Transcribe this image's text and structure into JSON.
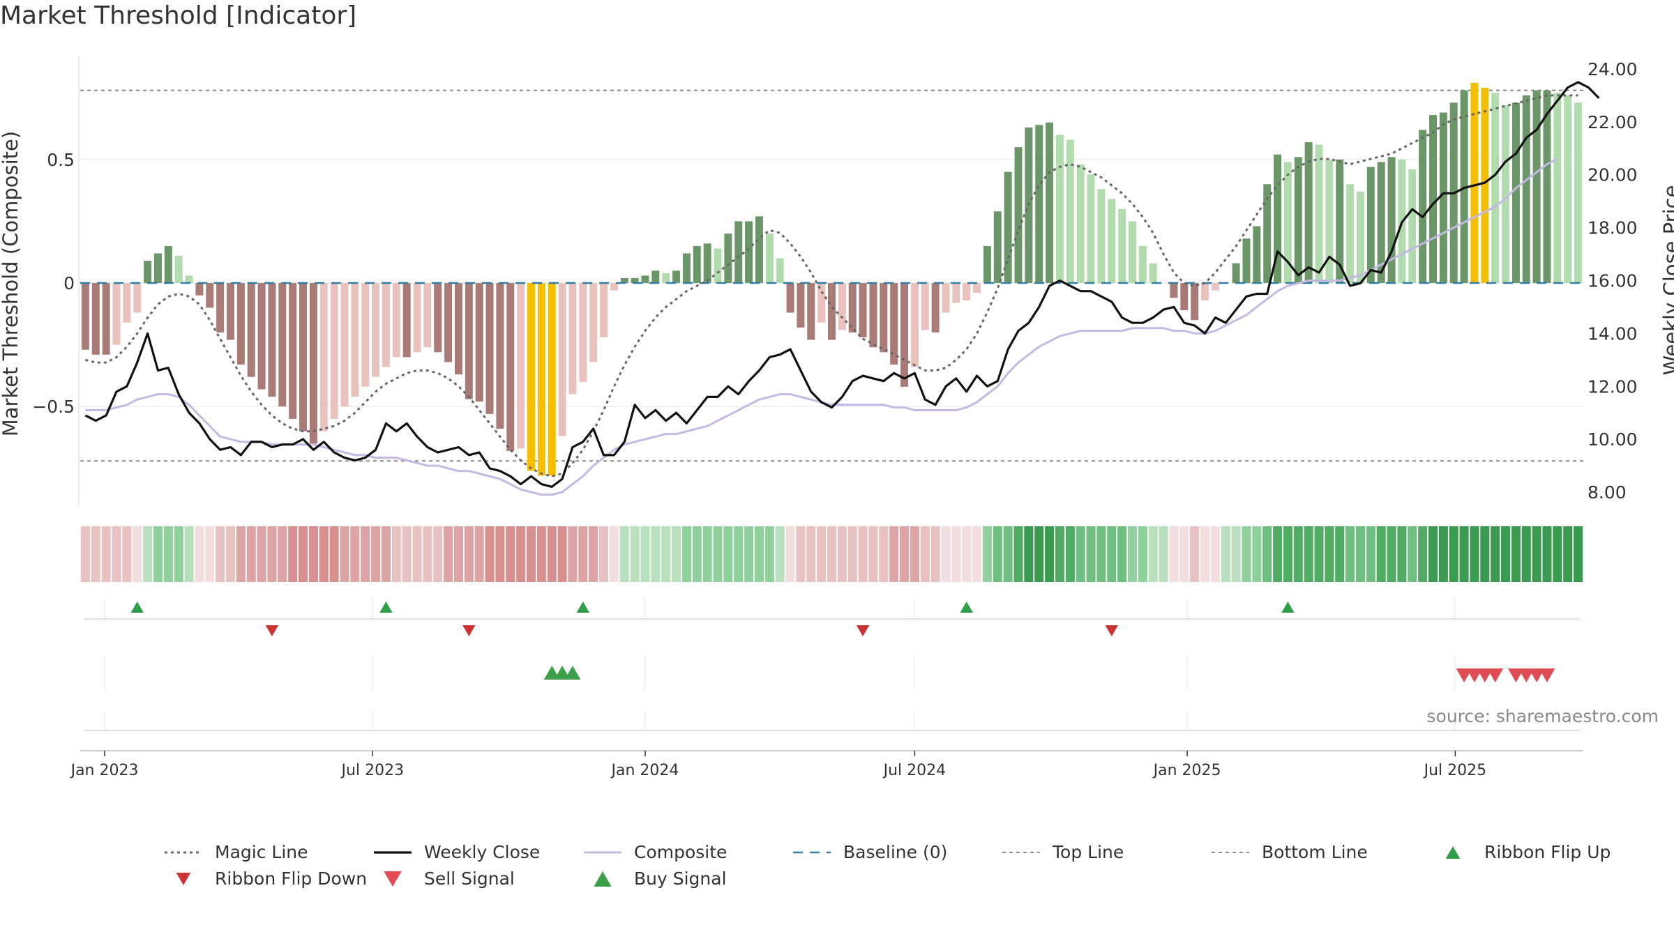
{
  "title": "Market Threshold [Indicator]",
  "source": "source: sharemaestro.com",
  "chart_data": {
    "type": "bar",
    "x_axis": {
      "ticks": [
        "Jan 2023",
        "Jul 2023",
        "Jan 2024",
        "Jul 2024",
        "Jan 2025",
        "Jul 2025"
      ],
      "start_date": "2022-12-19",
      "end_date": "2025-09-22",
      "week_count": 145
    },
    "y_left": {
      "label": "Market Threshold (Composite)",
      "ticks": [
        -0.5,
        0,
        0.5
      ],
      "tick_labels": [
        "−0.5",
        "0",
        "0.5"
      ],
      "range": [
        -0.9,
        0.92
      ]
    },
    "y_right": {
      "label": "Weekly Close Price",
      "ticks": [
        8,
        10,
        12,
        14,
        16,
        18,
        20,
        22,
        24
      ],
      "tick_labels": [
        "8.00",
        "10.00",
        "12.00",
        "14.00",
        "16.00",
        "18.00",
        "20.00",
        "22.00",
        "24.00"
      ],
      "range": [
        7.5,
        24.5
      ]
    },
    "reference_lines": {
      "top_line": 0.78,
      "bottom_line": -0.72,
      "baseline": 0
    },
    "composite_bars": [
      -0.27,
      -0.29,
      -0.29,
      -0.25,
      -0.16,
      -0.12,
      0.09,
      0.12,
      0.15,
      0.11,
      0.03,
      -0.05,
      -0.1,
      -0.2,
      -0.23,
      -0.33,
      -0.38,
      -0.43,
      -0.46,
      -0.5,
      -0.55,
      -0.6,
      -0.65,
      -0.6,
      -0.55,
      -0.5,
      -0.46,
      -0.42,
      -0.38,
      -0.34,
      -0.3,
      -0.3,
      -0.28,
      -0.26,
      -0.28,
      -0.32,
      -0.37,
      -0.47,
      -0.48,
      -0.53,
      -0.59,
      -0.68,
      -0.67,
      -0.76,
      -0.78,
      -0.78,
      -0.62,
      -0.45,
      -0.4,
      -0.32,
      -0.22,
      -0.03,
      0.02,
      0.02,
      0.03,
      0.05,
      0.04,
      0.05,
      0.12,
      0.15,
      0.16,
      0.14,
      0.2,
      0.25,
      0.25,
      0.27,
      0.2,
      0.1,
      -0.12,
      -0.18,
      -0.23,
      -0.16,
      -0.23,
      -0.19,
      -0.2,
      -0.22,
      -0.26,
      -0.28,
      -0.33,
      -0.42,
      -0.34,
      -0.19,
      -0.2,
      -0.12,
      -0.08,
      -0.07,
      -0.04,
      0.15,
      0.29,
      0.45,
      0.55,
      0.63,
      0.64,
      0.65,
      0.6,
      0.58,
      0.48,
      0.44,
      0.38,
      0.34,
      0.3,
      0.25,
      0.15,
      0.08,
      0.0,
      -0.06,
      -0.11,
      -0.15,
      -0.07,
      -0.03,
      0.0,
      0.08,
      0.18,
      0.23,
      0.4,
      0.52,
      0.49,
      0.51,
      0.57,
      0.56,
      0.5,
      0.5,
      0.4,
      0.37,
      0.47,
      0.49,
      0.51,
      0.5,
      0.46,
      0.62,
      0.68,
      0.69,
      0.73,
      0.78,
      0.81,
      0.79,
      0.77,
      0.72,
      0.73,
      0.76,
      0.78,
      0.78,
      0.77,
      0.76,
      0.73
    ],
    "weekly_close": [
      10.9,
      10.7,
      10.9,
      11.8,
      12.0,
      12.9,
      14.0,
      12.6,
      12.7,
      11.7,
      11.0,
      10.6,
      10.0,
      9.6,
      9.7,
      9.4,
      9.9,
      9.9,
      9.7,
      9.8,
      9.8,
      10.0,
      9.6,
      9.9,
      9.5,
      9.3,
      9.2,
      9.3,
      9.6,
      10.6,
      10.3,
      10.6,
      10.1,
      9.7,
      9.5,
      9.6,
      9.7,
      9.4,
      9.5,
      8.9,
      8.8,
      8.6,
      8.3,
      8.6,
      8.3,
      8.2,
      8.5,
      9.7,
      9.9,
      10.4,
      9.4,
      9.4,
      9.9,
      11.3,
      10.8,
      11.1,
      10.7,
      11.0,
      10.6,
      11.1,
      11.6,
      11.6,
      12.0,
      11.7,
      12.2,
      12.6,
      13.1,
      13.2,
      13.4,
      12.6,
      11.8,
      11.4,
      11.2,
      11.6,
      12.2,
      12.4,
      12.3,
      12.2,
      12.5,
      12.3,
      12.5,
      11.5,
      11.3,
      12.0,
      12.3,
      11.8,
      12.4,
      12.0,
      12.2,
      13.4,
      14.1,
      14.4,
      15.0,
      15.8,
      16.0,
      15.8,
      15.6,
      15.6,
      15.4,
      15.2,
      14.6,
      14.4,
      14.4,
      14.6,
      14.9,
      15.0,
      14.4,
      14.3,
      14.0,
      14.6,
      14.4,
      14.9,
      15.4,
      15.5,
      15.5,
      17.1,
      16.7,
      16.2,
      16.5,
      16.3,
      16.9,
      16.6,
      15.8,
      15.9,
      16.4,
      16.3,
      17.1,
      18.2,
      18.7,
      18.4,
      18.9,
      19.3,
      19.3,
      19.5,
      19.6,
      19.7,
      20.0,
      20.5,
      20.8,
      21.4,
      21.7,
      22.3,
      22.8,
      23.3,
      23.5,
      23.3,
      22.9
    ],
    "composite_line": [
      11.1,
      11.1,
      11.1,
      11.2,
      11.3,
      11.5,
      11.6,
      11.7,
      11.7,
      11.6,
      11.3,
      10.9,
      10.5,
      10.1,
      10.0,
      9.9,
      9.9,
      9.9,
      9.8,
      9.8,
      9.8,
      9.8,
      9.8,
      9.7,
      9.6,
      9.5,
      9.4,
      9.4,
      9.3,
      9.3,
      9.3,
      9.2,
      9.1,
      9.0,
      9.0,
      8.9,
      8.8,
      8.8,
      8.7,
      8.6,
      8.5,
      8.3,
      8.1,
      8.0,
      7.9,
      7.9,
      8.0,
      8.3,
      8.6,
      9.0,
      9.3,
      9.6,
      9.8,
      9.9,
      10.0,
      10.1,
      10.2,
      10.2,
      10.3,
      10.4,
      10.5,
      10.7,
      10.9,
      11.1,
      11.3,
      11.5,
      11.6,
      11.7,
      11.7,
      11.6,
      11.5,
      11.4,
      11.3,
      11.3,
      11.3,
      11.3,
      11.3,
      11.3,
      11.2,
      11.2,
      11.1,
      11.1,
      11.1,
      11.1,
      11.1,
      11.2,
      11.4,
      11.7,
      12.0,
      12.5,
      12.9,
      13.2,
      13.5,
      13.7,
      13.9,
      14.0,
      14.1,
      14.1,
      14.1,
      14.1,
      14.1,
      14.2,
      14.2,
      14.2,
      14.2,
      14.1,
      14.1,
      14.0,
      14.0,
      14.1,
      14.3,
      14.5,
      14.7,
      15.0,
      15.3,
      15.6,
      15.8,
      15.9,
      16.0,
      16.0,
      16.0,
      16.0,
      16.1,
      16.2,
      16.4,
      16.6,
      16.8,
      17.0,
      17.2,
      17.4,
      17.6,
      17.8,
      18.0,
      18.2,
      18.4,
      18.6,
      18.8,
      19.1,
      19.5,
      19.8,
      20.1,
      20.4,
      20.6
    ],
    "magic_line": [
      13.0,
      12.9,
      12.9,
      13.1,
      13.5,
      14.0,
      14.6,
      15.1,
      15.4,
      15.5,
      15.4,
      15.1,
      14.5,
      13.8,
      13.1,
      12.4,
      11.8,
      11.3,
      10.9,
      10.6,
      10.4,
      10.3,
      10.3,
      10.4,
      10.5,
      10.7,
      11.0,
      11.4,
      11.8,
      12.1,
      12.3,
      12.5,
      12.6,
      12.6,
      12.5,
      12.3,
      12.0,
      11.6,
      11.1,
      10.6,
      10.1,
      9.6,
      9.2,
      8.9,
      8.7,
      8.6,
      8.7,
      9.1,
      9.6,
      10.3,
      11.1,
      12.0,
      12.8,
      13.5,
      14.1,
      14.6,
      15.0,
      15.3,
      15.6,
      15.8,
      16.0,
      16.3,
      16.6,
      16.9,
      17.2,
      17.6,
      17.9,
      17.8,
      17.4,
      16.9,
      16.3,
      15.6,
      15.0,
      14.6,
      14.2,
      13.8,
      13.6,
      13.4,
      13.2,
      13.0,
      12.8,
      12.6,
      12.6,
      12.7,
      13.0,
      13.4,
      14.0,
      14.8,
      15.7,
      16.8,
      17.9,
      18.9,
      19.6,
      20.1,
      20.3,
      20.4,
      20.3,
      20.1,
      19.9,
      19.6,
      19.3,
      18.9,
      18.4,
      17.8,
      17.0,
      16.3,
      15.9,
      15.8,
      15.9,
      16.3,
      16.8,
      17.3,
      17.9,
      18.5,
      19.1,
      19.6,
      20.0,
      20.3,
      20.5,
      20.6,
      20.6,
      20.5,
      20.4,
      20.5,
      20.6,
      20.7,
      20.8,
      21.0,
      21.2,
      21.4,
      21.6,
      21.9,
      22.1,
      22.2,
      22.3,
      22.4,
      22.5,
      22.6,
      22.7,
      22.8,
      22.9,
      23.0,
      23.0,
      23.0,
      23.0
    ],
    "ribbon_green_shades": [
      "#f2dede",
      "#e8c2c2",
      "#dca4a4",
      "#d8908f",
      "#b8e0bf",
      "#8fd09c",
      "#6fbf80",
      "#4fac62",
      "#3a9a4f"
    ],
    "signals": {
      "ribbon_flip_up": [
        "2023-01-23",
        "2023-07-10",
        "2023-11-20",
        "2024-08-05",
        "2025-03-10"
      ],
      "ribbon_flip_down": [
        "2023-04-24",
        "2023-09-04",
        "2024-05-27",
        "2024-11-11"
      ],
      "buy_signal": [
        "2023-10-30",
        "2023-11-06",
        "2023-11-13"
      ],
      "sell_signal": [
        "2025-07-07",
        "2025-07-14",
        "2025-07-21",
        "2025-07-28",
        "2025-08-11",
        "2025-08-18",
        "2025-08-25",
        "2025-09-01"
      ]
    }
  },
  "legend": [
    {
      "key": "magic",
      "label": "Magic Line"
    },
    {
      "key": "close",
      "label": "Weekly Close"
    },
    {
      "key": "composite",
      "label": "Composite"
    },
    {
      "key": "baseline",
      "label": "Baseline (0)"
    },
    {
      "key": "top",
      "label": "Top Line"
    },
    {
      "key": "bottom",
      "label": "Bottom Line"
    },
    {
      "key": "flip-up",
      "label": "Ribbon Flip Up"
    },
    {
      "key": "flip-down",
      "label": "Ribbon Flip Down"
    },
    {
      "key": "sell",
      "label": "Sell Signal"
    },
    {
      "key": "buy",
      "label": "Buy Signal"
    }
  ],
  "colors": {
    "bar_pos_strong": "#6b9667",
    "bar_pos_weak": "#b2dbae",
    "bar_neg_strong": "#a97a76",
    "bar_neg_weak": "#e9c2bd",
    "bar_extreme": "#f5bf00",
    "magic_line": "#666666",
    "weekly_close": "#111111",
    "composite_line": "#c3b9e3",
    "baseline": "#2e7fa8",
    "ref_line": "#888888",
    "flip_up": "#2e9e48",
    "flip_down": "#cc3333",
    "sell": "#e04b54",
    "buy": "#3c9f4a"
  }
}
